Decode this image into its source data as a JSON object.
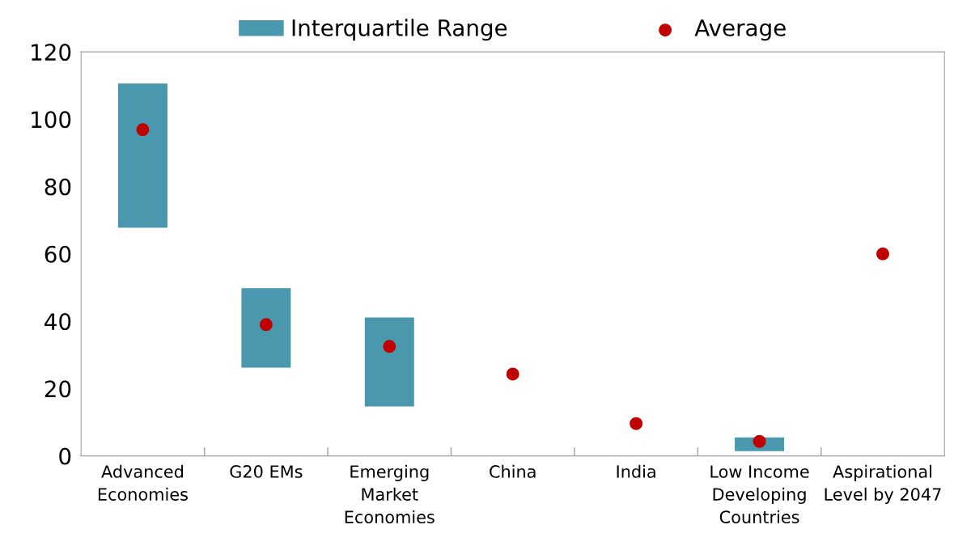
{
  "chart_data": {
    "type": "bar",
    "categories": [
      "Advanced\nEconomies",
      "G20 EMs",
      "Emerging\nMarket\nEconomies",
      "China",
      "India",
      "Low Income\nDeveloping\nCountries",
      "Aspirational\nLevel by 2047"
    ],
    "series": [
      {
        "name": "Interquartile Range",
        "color": "#4a98ae",
        "base": [
          67.8,
          26.2,
          14.7,
          null,
          null,
          1.4,
          null
        ],
        "values": [
          42.8,
          23.6,
          26.4,
          null,
          null,
          4.1,
          null
        ]
      },
      {
        "name": "Average",
        "type": "scatter",
        "color": "#c00000",
        "marker": "circle",
        "values": [
          96.9,
          39.0,
          32.5,
          24.3,
          9.6,
          4.3,
          60
        ]
      }
    ],
    "ylim": [
      0,
      120
    ],
    "yticks": [
      0,
      20,
      40,
      60,
      80,
      100,
      120
    ],
    "grid": false,
    "legend": "top"
  }
}
